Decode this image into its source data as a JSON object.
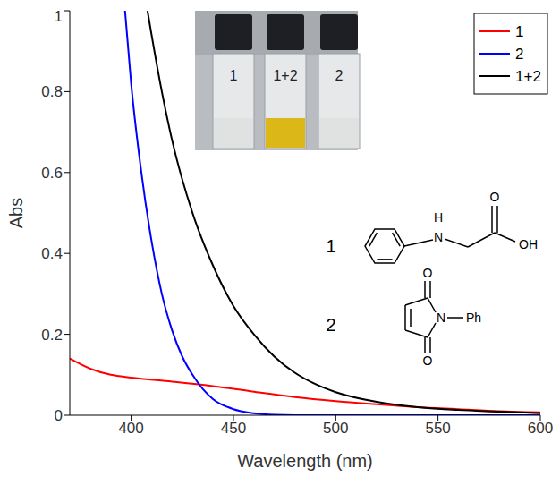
{
  "chart_data": {
    "type": "line",
    "x_label": "Wavelength (nm)",
    "y_label": "Abs",
    "xlim": [
      370,
      600
    ],
    "xticks": [
      400,
      450,
      500,
      550,
      600
    ],
    "ylim": [
      0,
      1
    ],
    "yticks": [
      0,
      0.2,
      0.4,
      0.6,
      0.8,
      1
    ],
    "grid": false,
    "legend": "top-right",
    "series": [
      {
        "name": "1",
        "color": "#ff0000",
        "x": [
          370,
          380,
          390,
          400,
          420,
          440,
          460,
          480,
          500,
          520,
          540,
          560,
          580,
          600
        ],
        "values": [
          0.14,
          0.115,
          0.1,
          0.093,
          0.083,
          0.072,
          0.058,
          0.045,
          0.035,
          0.027,
          0.02,
          0.015,
          0.01,
          0.007
        ]
      },
      {
        "name": "2",
        "color": "#0000ff",
        "x": [
          397,
          400,
          405,
          410,
          415,
          420,
          425,
          430,
          435,
          440,
          450,
          460,
          470,
          480,
          500,
          550,
          600
        ],
        "values": [
          1.0,
          0.82,
          0.6,
          0.43,
          0.3,
          0.21,
          0.145,
          0.1,
          0.065,
          0.04,
          0.015,
          0.005,
          0.001,
          0,
          0,
          0,
          0
        ]
      },
      {
        "name": "1+2",
        "color": "#000000",
        "x": [
          408,
          410,
          415,
          420,
          430,
          440,
          450,
          460,
          470,
          480,
          490,
          500,
          520,
          540,
          560,
          580,
          600
        ],
        "values": [
          1.0,
          0.94,
          0.8,
          0.68,
          0.5,
          0.37,
          0.27,
          0.2,
          0.145,
          0.105,
          0.077,
          0.057,
          0.033,
          0.02,
          0.013,
          0.009,
          0.005
        ]
      }
    ],
    "inset_labels": [
      "1",
      "1+2",
      "2"
    ],
    "structures": [
      {
        "label": "1",
        "atoms": [
          "H",
          "N",
          "O",
          "OH"
        ]
      },
      {
        "label": "2",
        "atoms": [
          "O",
          "N",
          "Ph",
          "O"
        ]
      }
    ]
  }
}
